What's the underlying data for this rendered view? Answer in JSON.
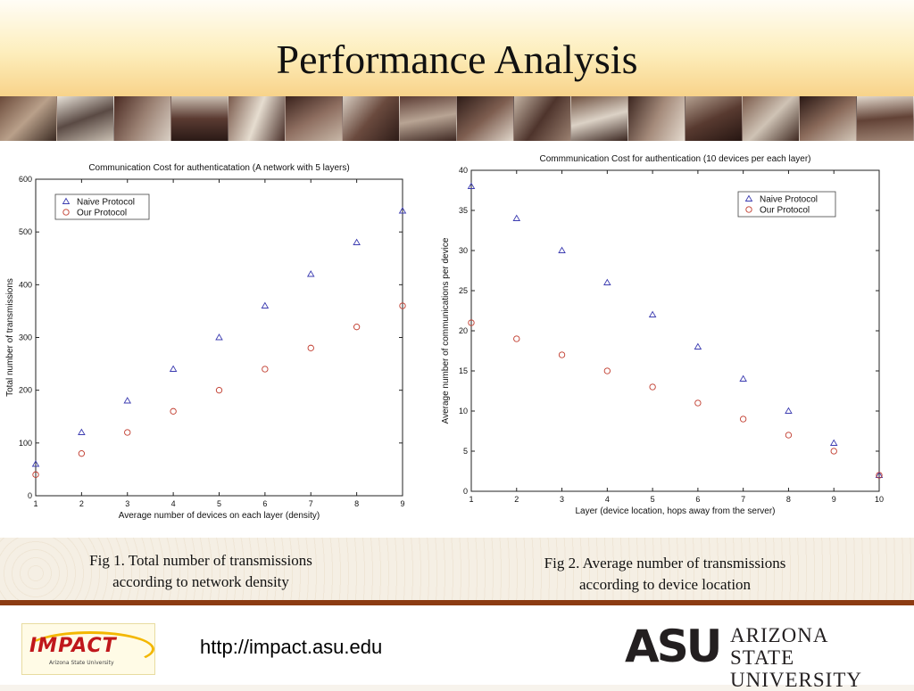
{
  "slide": {
    "title": "Performance Analysis",
    "captions": [
      {
        "line1": "Fig 1. Total number of transmissions",
        "line2": "according to network density"
      },
      {
        "line1": "Fig 2. Average number of transmissions",
        "line2": "according to device location"
      }
    ],
    "url": "http://impact.asu.edu",
    "impact_logo": {
      "word": "IMPACT",
      "sub": "Arizona State University"
    },
    "asu_logo": {
      "mark": "ASU",
      "line1": "ARIZONA STATE",
      "line2": "UNIVERSITY"
    }
  },
  "colors": {
    "naive": "#3b3bb0",
    "ours": "#c0392b",
    "rule": "#8c3b12",
    "header_bottom": "#f8d38a"
  },
  "chart_data": [
    {
      "type": "scatter",
      "title": "Communication Cost for authenticatation (A network with 5 layers)",
      "xlabel": "Average number of devices on each layer (density)",
      "ylabel": "Total number of transmissions",
      "xlim": [
        1,
        9
      ],
      "ylim": [
        0,
        600
      ],
      "xticks": [
        1,
        2,
        3,
        4,
        5,
        6,
        7,
        8,
        9
      ],
      "yticks": [
        0,
        100,
        200,
        300,
        400,
        500,
        600
      ],
      "legend_position": "top-left",
      "grid": false,
      "series": [
        {
          "name": "Naive Protocol",
          "marker": "triangle",
          "x": [
            1,
            2,
            3,
            4,
            5,
            6,
            7,
            8,
            9
          ],
          "y": [
            60,
            120,
            180,
            240,
            300,
            360,
            420,
            480,
            540
          ]
        },
        {
          "name": "Our Protocol",
          "marker": "circle",
          "x": [
            1,
            2,
            3,
            4,
            5,
            6,
            7,
            8,
            9
          ],
          "y": [
            40,
            80,
            120,
            160,
            200,
            240,
            280,
            320,
            360
          ]
        }
      ]
    },
    {
      "type": "scatter",
      "title": "Commmunication Cost for authentication (10 devices per each layer)",
      "xlabel": "Layer (device location, hops away from the server)",
      "ylabel": "Average number of communications per device",
      "xlim": [
        1,
        10
      ],
      "ylim": [
        0,
        40
      ],
      "xticks": [
        1,
        2,
        3,
        4,
        5,
        6,
        7,
        8,
        9,
        10
      ],
      "yticks": [
        0,
        5,
        10,
        15,
        20,
        25,
        30,
        35,
        40
      ],
      "legend_position": "top-right",
      "grid": false,
      "series": [
        {
          "name": "Naive Protocol",
          "marker": "triangle",
          "x": [
            1,
            2,
            3,
            4,
            5,
            6,
            7,
            8,
            9,
            10
          ],
          "y": [
            38,
            34,
            30,
            26,
            22,
            18,
            14,
            10,
            6,
            2
          ]
        },
        {
          "name": "Our Protocol",
          "marker": "circle",
          "x": [
            1,
            2,
            3,
            4,
            5,
            6,
            7,
            8,
            9,
            10
          ],
          "y": [
            21,
            19,
            17,
            15,
            13,
            11,
            9,
            7,
            5,
            2
          ]
        }
      ]
    }
  ]
}
